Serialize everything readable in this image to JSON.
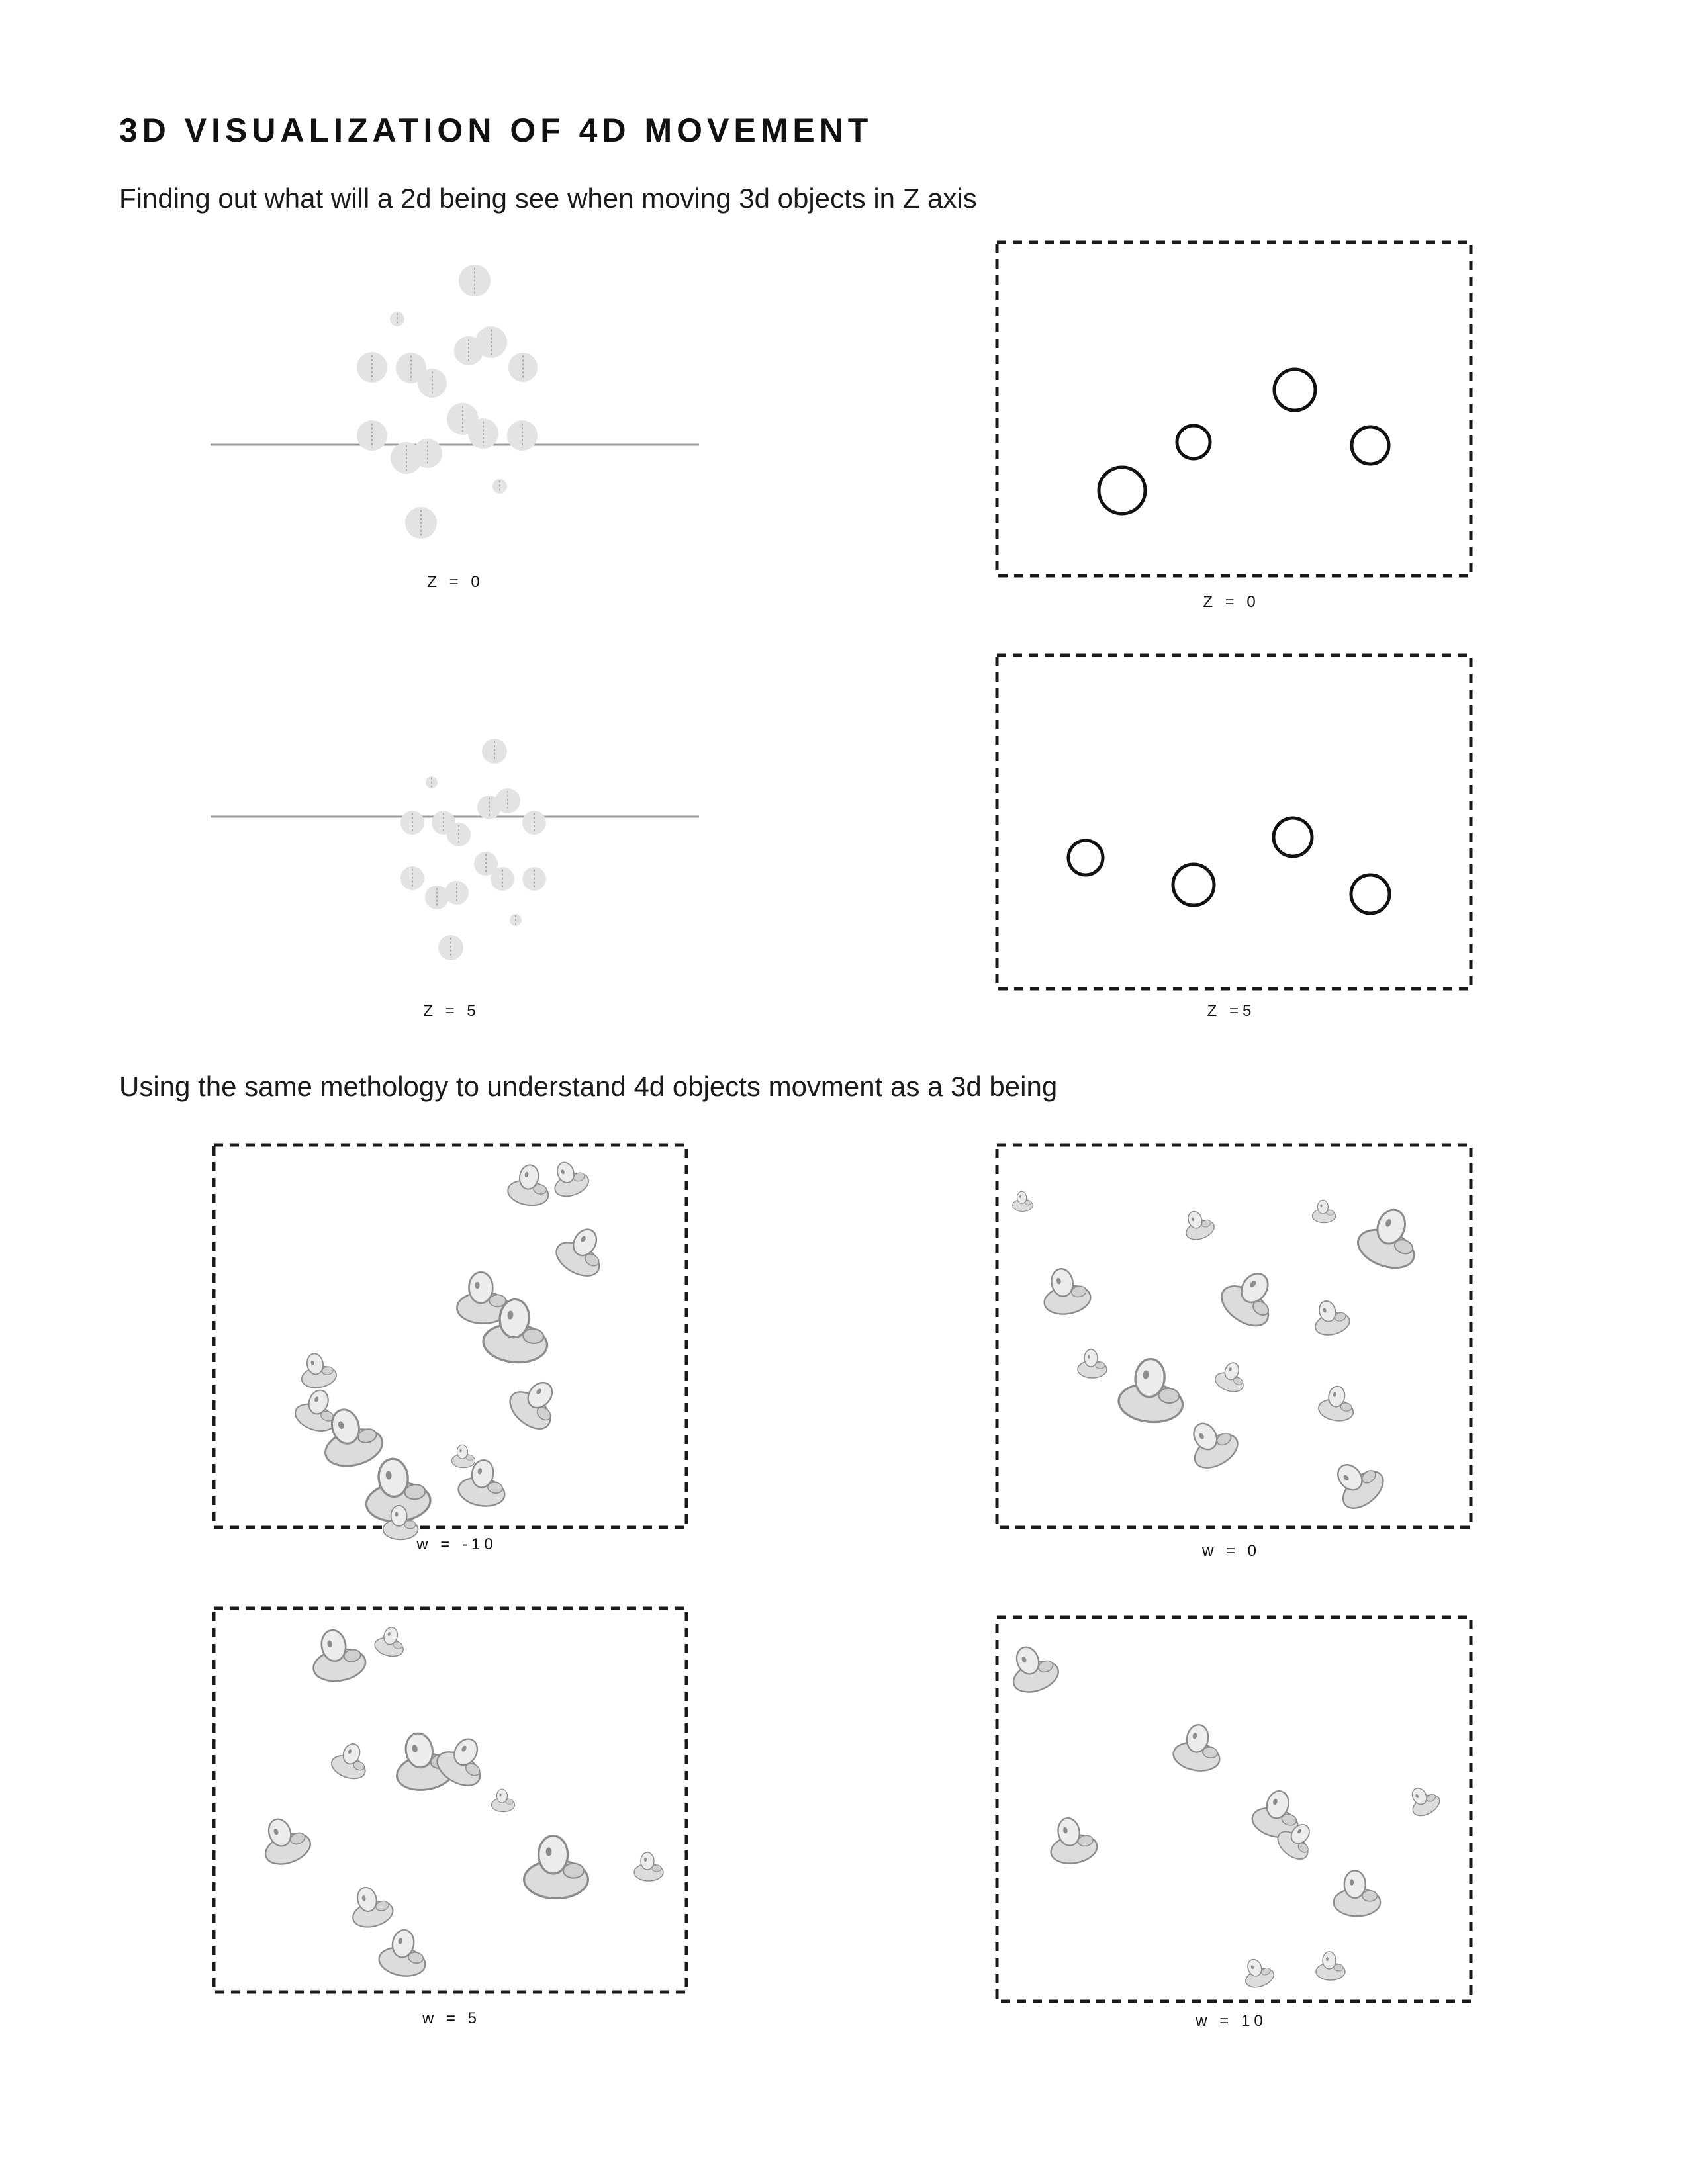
{
  "header": {
    "title": "3D VISUALIZATION OF 4D MOVEMENT",
    "subtitle_3d": "Finding out what will a 2d being see when moving 3d objects in Z axis",
    "subtitle_4d": "Using the same methology to understand 4d objects movment as a 3d being"
  },
  "captions": {
    "spheres_z0": "Z = 0",
    "slice_z0": "Z = 0",
    "spheres_z5": "Z = 5",
    "slice_z5": "Z =5",
    "w_minus10": "w = -10",
    "w_0": "w = 0",
    "w_5": "w = 5",
    "w_10": "w = 10"
  },
  "colors": {
    "sphere_fill": "#e3e3e3",
    "section_line": "#9a9a9a",
    "frame_stroke": "#1a1a1a",
    "figure_fill": "#dcdcdc",
    "figure_shadow": "#8c8c8c"
  }
}
